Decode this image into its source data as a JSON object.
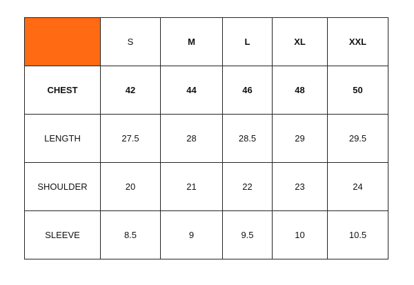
{
  "table": {
    "header": [
      "S",
      "M",
      "L",
      "XL",
      "XXL"
    ],
    "rows": [
      [
        "CHEST",
        42,
        44,
        46,
        48,
        50
      ],
      [
        "LENGTH",
        27.5,
        28,
        28.5,
        29,
        29.5
      ],
      [
        "SHOULDER",
        20,
        21,
        22,
        23,
        24
      ],
      [
        "SLEEVE",
        8.5,
        9,
        9.5,
        10,
        10.5
      ]
    ]
  }
}
